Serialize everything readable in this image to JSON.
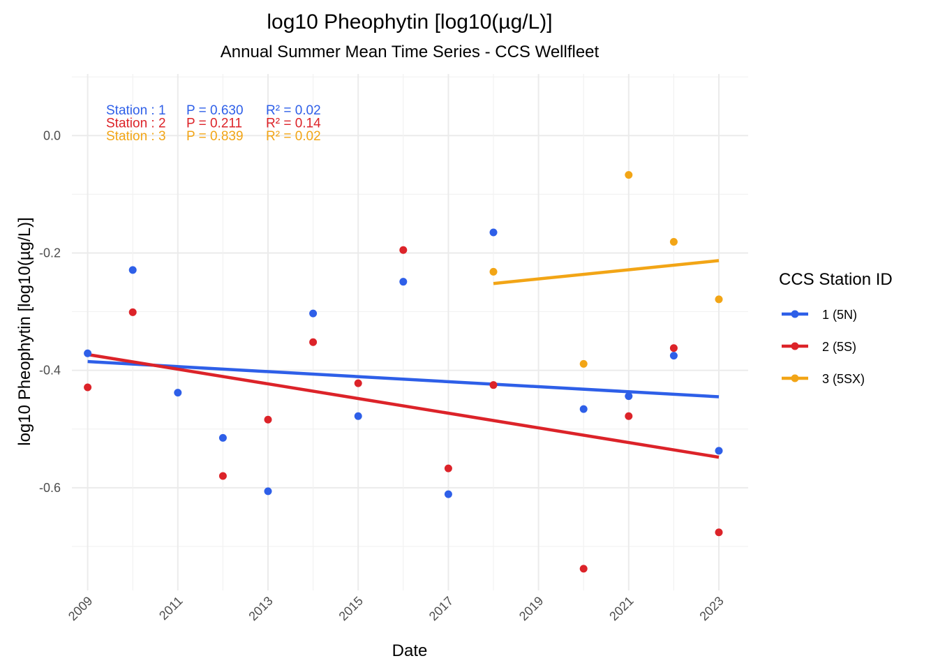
{
  "chart_data": {
    "type": "scatter",
    "title": "log10 Pheophytin [log10(µg/L)]",
    "subtitle": "Annual Summer Mean Time Series - CCS Wellfleet",
    "xlabel": "Date",
    "ylabel": "log10 Pheophytin [log10(µg/L)]",
    "x_ticks": [
      "2009",
      "2011",
      "2013",
      "2015",
      "2017",
      "2019",
      "2021",
      "2023"
    ],
    "y_ticks": [
      "0.0",
      "-0.2",
      "-0.4",
      "-0.6"
    ],
    "xlim": [
      2008.65,
      2023.65
    ],
    "ylim": [
      -0.775,
      0.105
    ],
    "grid": true,
    "legend": {
      "title": "CCS Station ID",
      "placement": "right"
    },
    "series": [
      {
        "name": "1 (5N)",
        "color": "#2E5FE8",
        "points": [
          {
            "x": 2009,
            "y": -0.371
          },
          {
            "x": 2010,
            "y": -0.229
          },
          {
            "x": 2011,
            "y": -0.438
          },
          {
            "x": 2012,
            "y": -0.515
          },
          {
            "x": 2013,
            "y": -0.606
          },
          {
            "x": 2014,
            "y": -0.303
          },
          {
            "x": 2015,
            "y": -0.478
          },
          {
            "x": 2016,
            "y": -0.249
          },
          {
            "x": 2017,
            "y": -0.611
          },
          {
            "x": 2018,
            "y": -0.165
          },
          {
            "x": 2020,
            "y": -0.466
          },
          {
            "x": 2021,
            "y": -0.444
          },
          {
            "x": 2022,
            "y": -0.375
          },
          {
            "x": 2023,
            "y": -0.537
          }
        ],
        "trend": {
          "x": [
            2009,
            2023
          ],
          "y": [
            -0.385,
            -0.445
          ]
        },
        "annotation": {
          "station": "Station : 1",
          "p": "P = 0.630",
          "r2": "R² = 0.02"
        }
      },
      {
        "name": "2 (5S)",
        "color": "#DC2329",
        "points": [
          {
            "x": 2009,
            "y": -0.429
          },
          {
            "x": 2010,
            "y": -0.301
          },
          {
            "x": 2012,
            "y": -0.58
          },
          {
            "x": 2013,
            "y": -0.484
          },
          {
            "x": 2014,
            "y": -0.352
          },
          {
            "x": 2015,
            "y": -0.422
          },
          {
            "x": 2016,
            "y": -0.195
          },
          {
            "x": 2017,
            "y": -0.567
          },
          {
            "x": 2018,
            "y": -0.425
          },
          {
            "x": 2020,
            "y": -0.738
          },
          {
            "x": 2021,
            "y": -0.478
          },
          {
            "x": 2022,
            "y": -0.362
          },
          {
            "x": 2023,
            "y": -0.676
          }
        ],
        "trend": {
          "x": [
            2009,
            2023
          ],
          "y": [
            -0.373,
            -0.548
          ]
        },
        "annotation": {
          "station": "Station : 2",
          "p": "P = 0.211",
          "r2": "R² = 0.14"
        }
      },
      {
        "name": "3 (5SX)",
        "color": "#F2A516",
        "points": [
          {
            "x": 2018,
            "y": -0.232
          },
          {
            "x": 2020,
            "y": -0.389
          },
          {
            "x": 2021,
            "y": -0.067
          },
          {
            "x": 2022,
            "y": -0.181
          },
          {
            "x": 2023,
            "y": -0.279
          }
        ],
        "trend": {
          "x": [
            2018,
            2023
          ],
          "y": [
            -0.252,
            -0.213
          ]
        },
        "annotation": {
          "station": "Station : 3",
          "p": "P = 0.839",
          "r2": "R² = 0.02"
        }
      }
    ]
  }
}
